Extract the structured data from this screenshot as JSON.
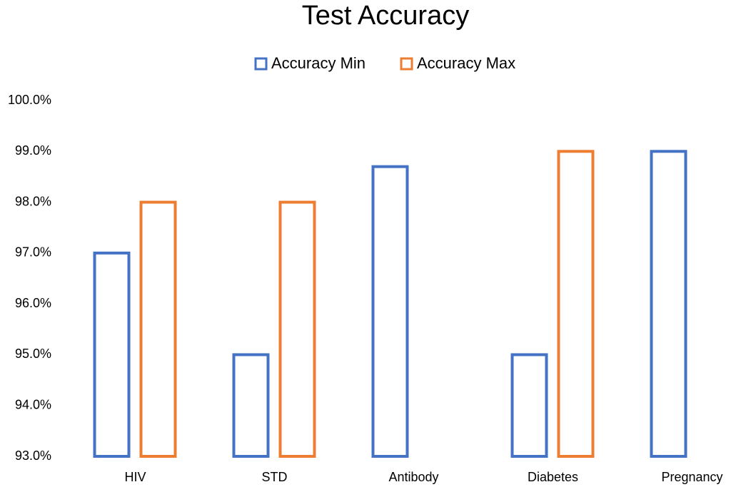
{
  "chart_data": {
    "type": "bar",
    "title": "Test Accuracy",
    "categories": [
      "HIV",
      "STD",
      "Antibody",
      "Diabetes",
      "Pregnancy"
    ],
    "series": [
      {
        "name": "Accuracy Min",
        "color": "#4472c4",
        "values": [
          97,
          95,
          98.7,
          95,
          99
        ]
      },
      {
        "name": "Accuracy Max",
        "color": "#ed7d31",
        "values": [
          98,
          98,
          null,
          99,
          null
        ]
      }
    ],
    "ylim": [
      93,
      100
    ],
    "yticks": [
      {
        "value": 93,
        "label": "93.0%"
      },
      {
        "value": 94,
        "label": "94.0%"
      },
      {
        "value": 95,
        "label": "95.0%"
      },
      {
        "value": 96,
        "label": "96.0%"
      },
      {
        "value": 97,
        "label": "97.0%"
      },
      {
        "value": 98,
        "label": "98.0%"
      },
      {
        "value": 99,
        "label": "99.0%"
      },
      {
        "value": 100,
        "label": "100.0%"
      }
    ],
    "grid": false,
    "legend": "top"
  }
}
